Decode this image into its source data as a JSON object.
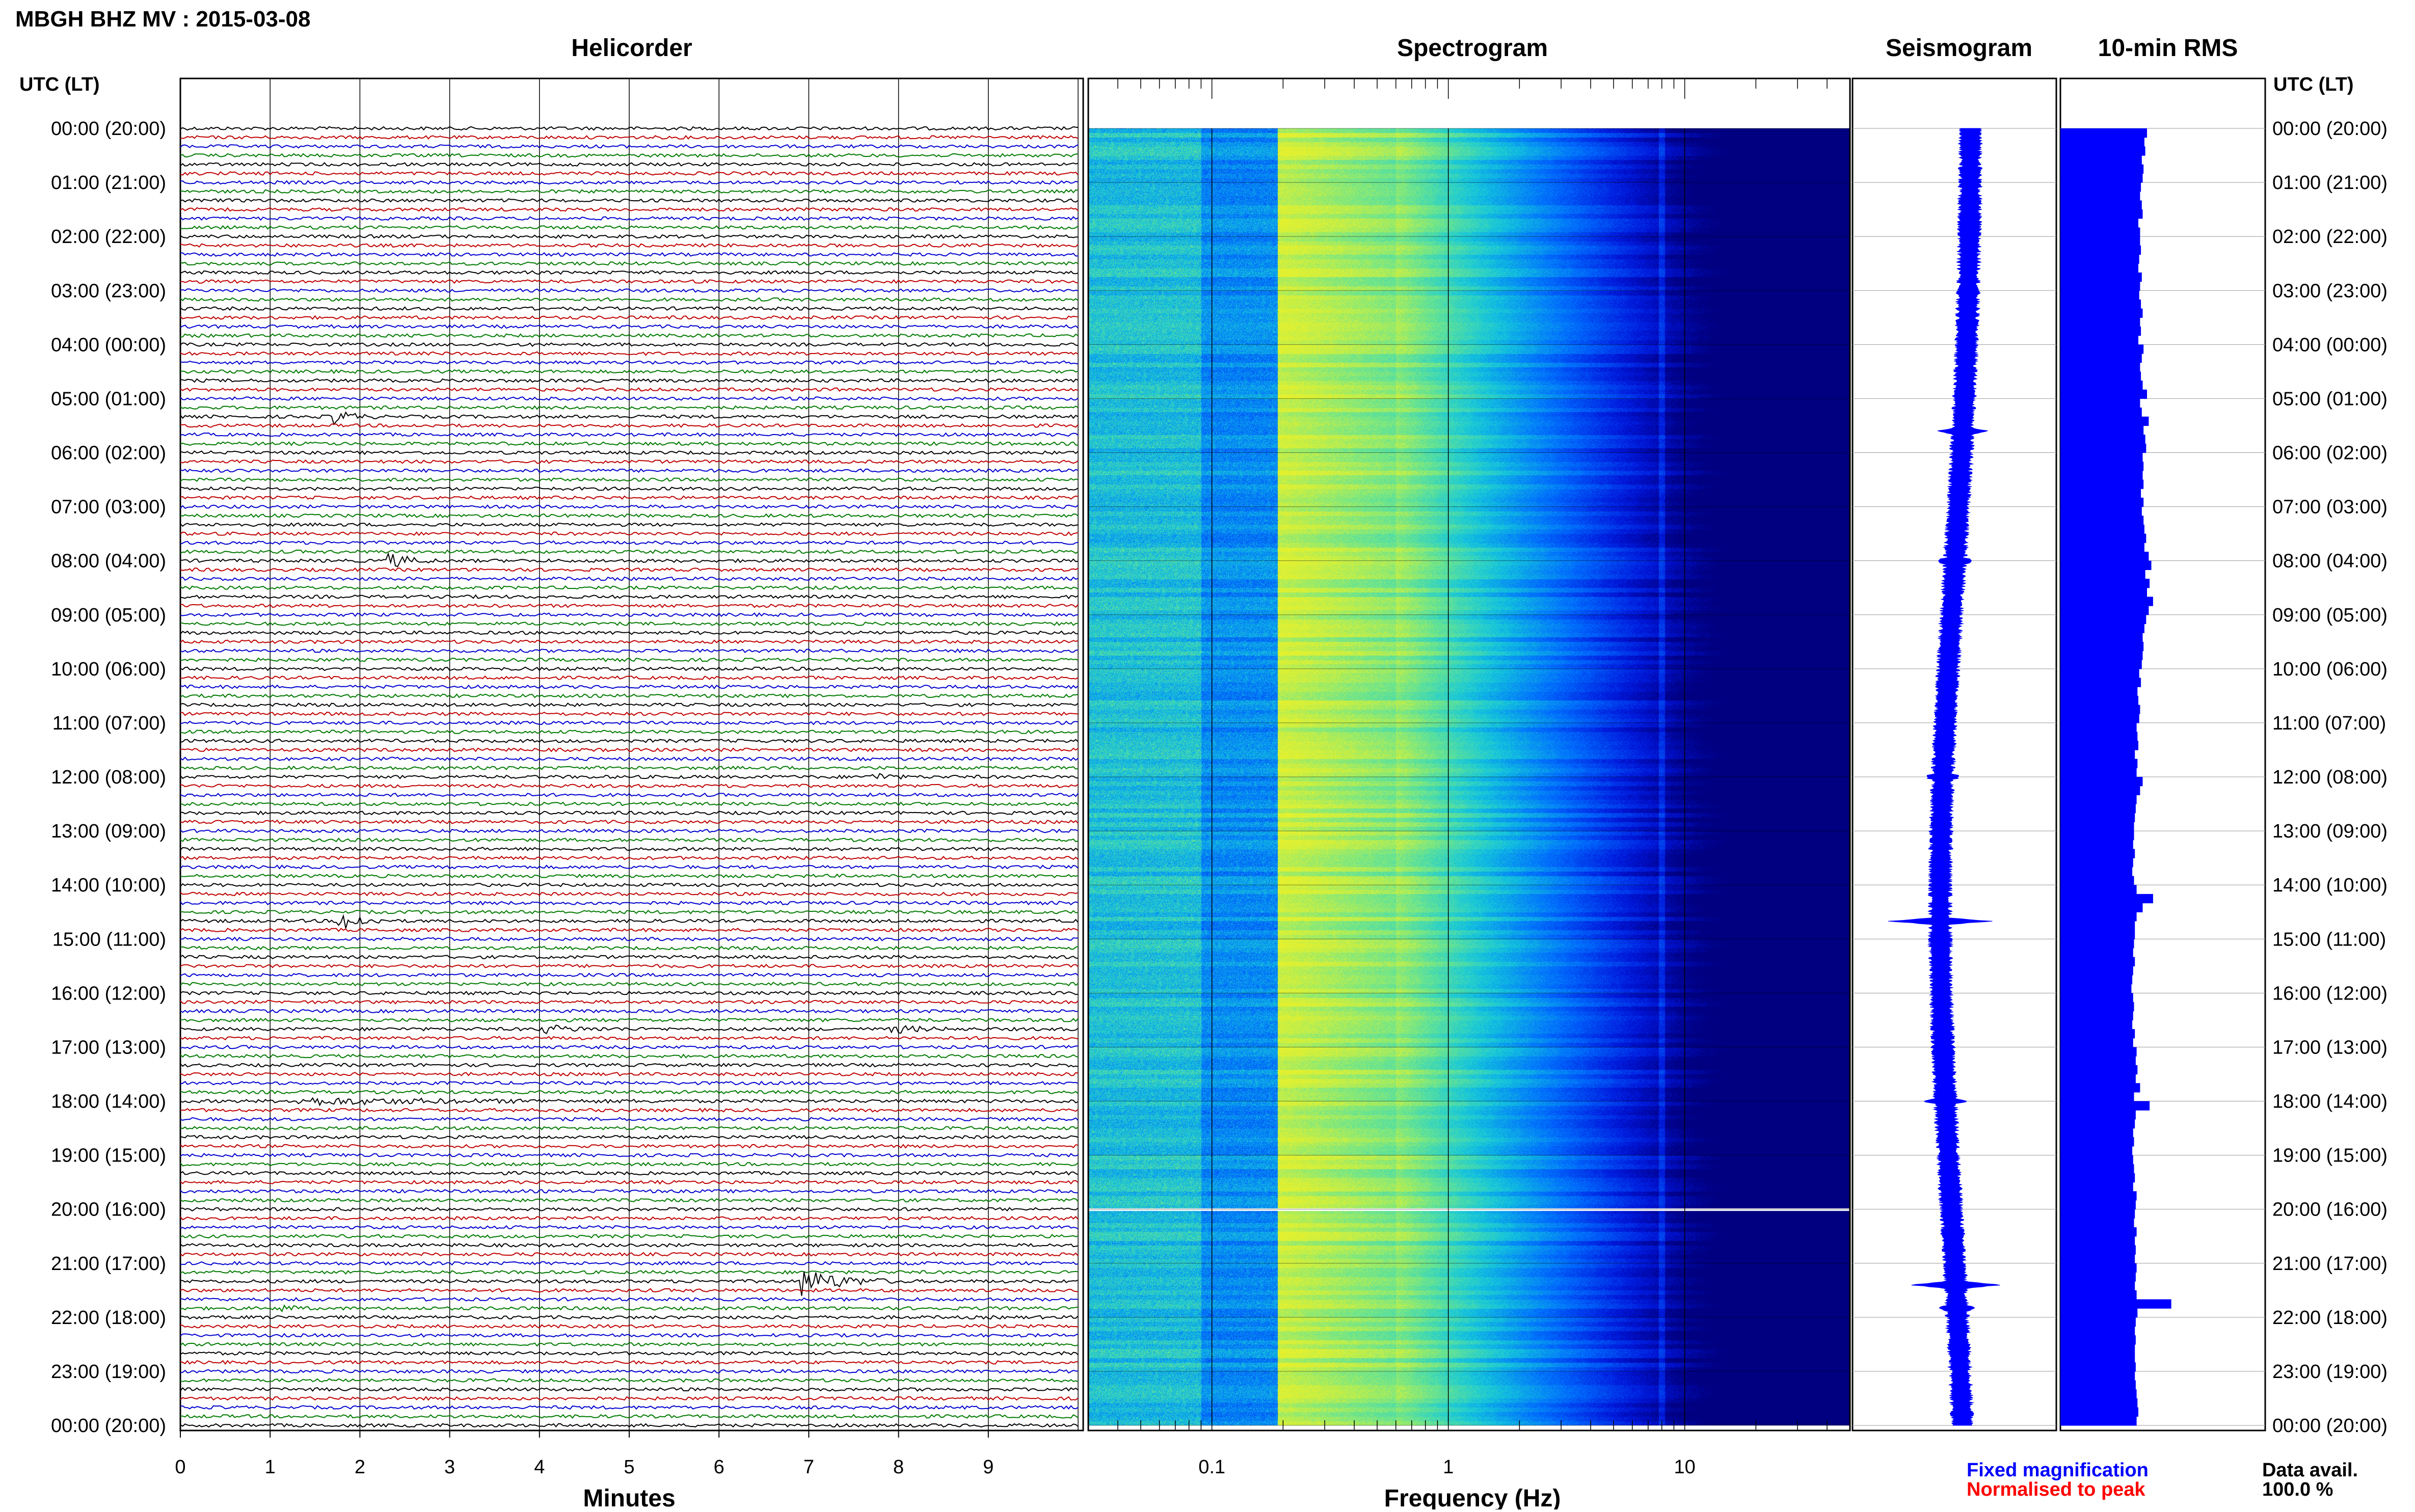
{
  "header": {
    "title": "MBGH BHZ MV : 2015-03-08"
  },
  "panels": {
    "helicorder": "Helicorder",
    "spectrogram": "Spectrogram",
    "seismogram": "Seismogram",
    "rms": "10-min RMS"
  },
  "axis": {
    "time_header_left": "UTC (LT)",
    "time_header_right": "UTC (LT)",
    "minutes_label": "Minutes",
    "frequency_label": "Frequency (Hz)"
  },
  "legend": {
    "fixed": "Fixed magnification",
    "normalised": "Normalised to peak",
    "data_avail_label": "Data avail.",
    "data_avail_value": "100.0 %"
  },
  "colors": {
    "helicorder_traces": [
      "#000000",
      "#c00000",
      "#0000d0",
      "#007a00"
    ],
    "seismogram": "#0000ff",
    "rms": "#0000ff",
    "legend_fixed": "#0000ff",
    "legend_normalised": "#ff0000"
  },
  "chart_data": [
    {
      "type": "line",
      "name": "helicorder",
      "y_ticks": [
        "00:00 (20:00)",
        "01:00 (21:00)",
        "02:00 (22:00)",
        "03:00 (23:00)",
        "04:00 (00:00)",
        "05:00 (01:00)",
        "06:00 (02:00)",
        "07:00 (03:00)",
        "08:00 (04:00)",
        "09:00 (05:00)",
        "10:00 (06:00)",
        "11:00 (07:00)",
        "12:00 (08:00)",
        "13:00 (09:00)",
        "14:00 (10:00)",
        "15:00 (11:00)",
        "16:00 (12:00)",
        "17:00 (13:00)",
        "18:00 (14:00)",
        "19:00 (15:00)",
        "20:00 (16:00)",
        "21:00 (17:00)",
        "22:00 (18:00)",
        "23:00 (19:00)",
        "00:00 (20:00)"
      ],
      "x_ticks": [
        "0",
        "1",
        "2",
        "3",
        "4",
        "5",
        "6",
        "7",
        "8",
        "9"
      ],
      "xlim": [
        0,
        10
      ],
      "lines_per_hour": 6,
      "xlabel": "Minutes",
      "events": [
        {
          "hour": 5.33,
          "minute_start": 1.7,
          "minute_end": 2.2,
          "amp": 0.9
        },
        {
          "hour": 8.0,
          "minute_start": 2.3,
          "minute_end": 2.9,
          "amp": 0.9
        },
        {
          "hour": 12.0,
          "minute_start": 7.7,
          "minute_end": 8.1,
          "amp": 0.6
        },
        {
          "hour": 14.67,
          "minute_start": 1.75,
          "minute_end": 2.3,
          "amp": 1.6
        },
        {
          "hour": 16.67,
          "minute_start": 4.0,
          "minute_end": 5.0,
          "amp": 0.45
        },
        {
          "hour": 16.67,
          "minute_start": 7.9,
          "minute_end": 8.7,
          "amp": 0.45
        },
        {
          "hour": 18.0,
          "minute_start": 1.3,
          "minute_end": 5.6,
          "amp": 0.35
        },
        {
          "hour": 21.33,
          "minute_start": 6.9,
          "minute_end": 8.0,
          "amp": 1.6
        },
        {
          "hour": 21.83,
          "minute_start": 1.1,
          "minute_end": 1.4,
          "amp": 0.7
        }
      ]
    },
    {
      "type": "heatmap",
      "name": "spectrogram",
      "x_scale": "log",
      "xlim": [
        0.03,
        50
      ],
      "x_ticks": [
        "0.1",
        "1",
        "10"
      ],
      "x_tick_values": [
        0.1,
        1,
        10
      ],
      "xlabel": "Frequency (Hz)",
      "data_gap_hour": 20.0
    },
    {
      "type": "line",
      "name": "seismogram"
    },
    {
      "type": "bar",
      "name": "10-min RMS",
      "rows": 144,
      "values": [
        1.0,
        0.97,
        0.98,
        0.94,
        0.96,
        0.95,
        0.93,
        0.92,
        0.94,
        0.95,
        0.9,
        0.92,
        0.92,
        0.93,
        0.91,
        0.9,
        0.94,
        0.92,
        0.91,
        0.93,
        0.95,
        0.92,
        0.93,
        0.9,
        0.96,
        0.94,
        0.92,
        0.93,
        0.95,
        1.0,
        0.92,
        0.94,
        1.02,
        0.96,
        0.98,
        0.99,
        0.95,
        0.96,
        0.95,
        0.96,
        0.93,
        0.96,
        0.94,
        0.96,
        0.97,
        0.99,
        0.97,
        1.02,
        1.05,
        0.98,
        1.03,
        1.0,
        1.07,
        1.02,
        0.99,
        0.97,
        0.95,
        0.96,
        0.95,
        0.94,
        0.91,
        0.93,
        0.89,
        0.9,
        0.92,
        0.91,
        0.88,
        0.89,
        0.9,
        0.86,
        0.89,
        0.88,
        0.95,
        0.92,
        0.88,
        0.87,
        0.86,
        0.85,
        0.85,
        0.84,
        0.86,
        0.84,
        0.83,
        0.85,
        0.88,
        1.07,
        0.95,
        0.88,
        0.86,
        0.86,
        0.85,
        0.84,
        0.86,
        0.84,
        0.83,
        0.82,
        0.84,
        0.85,
        0.84,
        0.83,
        0.86,
        0.84,
        0.88,
        0.87,
        0.89,
        0.87,
        0.92,
        0.85,
        1.03,
        0.87,
        0.86,
        0.84,
        0.85,
        0.83,
        0.84,
        0.85,
        0.86,
        0.84,
        0.88,
        0.87,
        0.86,
        0.85,
        0.88,
        0.86,
        0.87,
        0.86,
        0.88,
        0.87,
        0.86,
        0.88,
        1.28,
        0.89,
        0.87,
        0.86,
        0.87,
        0.86,
        0.86,
        0.87,
        0.86,
        0.87,
        0.88,
        0.89,
        0.9,
        0.88
      ]
    }
  ]
}
